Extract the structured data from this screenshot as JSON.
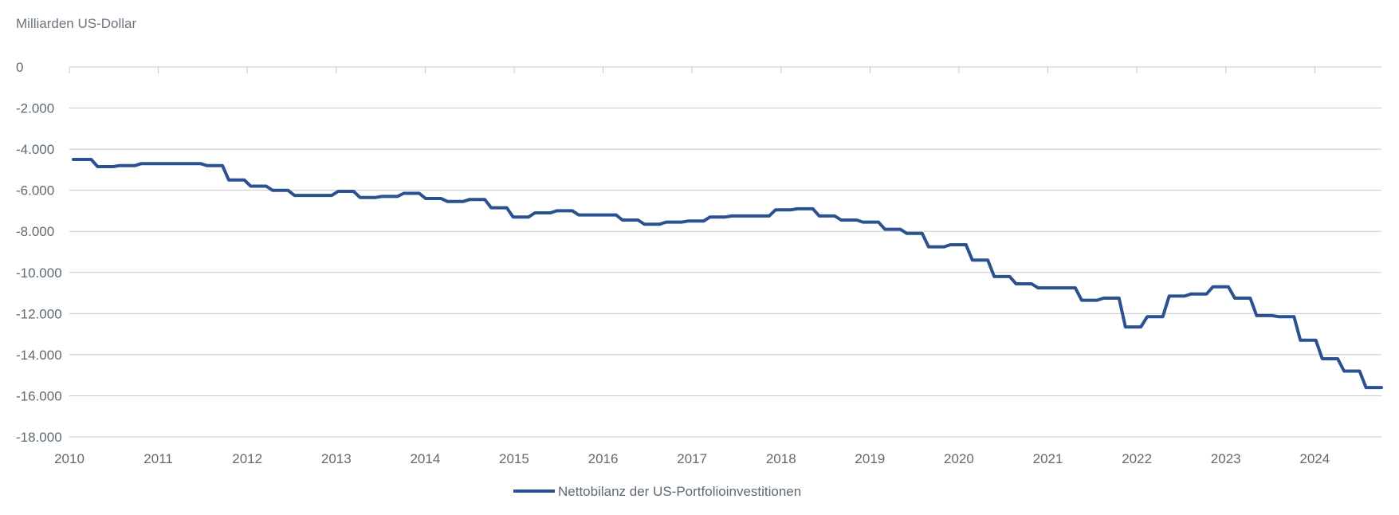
{
  "chart_data": {
    "type": "line",
    "ylabel": "Milliarden US-Dollar",
    "ylim": [
      -18000,
      0
    ],
    "yticks": [
      0,
      -2000,
      -4000,
      -6000,
      -8000,
      -10000,
      -12000,
      -14000,
      -16000,
      -18000
    ],
    "ytick_labels": [
      "0",
      "-2.000",
      "-4.000",
      "-6.000",
      "-8.000",
      "-10.000",
      "-12.000",
      "-14.000",
      "-16.000",
      "-18.000"
    ],
    "xlim": [
      2010,
      2024.75
    ],
    "xticks": [
      2010,
      2011,
      2012,
      2013,
      2014,
      2015,
      2016,
      2017,
      2018,
      2019,
      2020,
      2021,
      2022,
      2023,
      2024
    ],
    "xtick_labels": [
      "2010",
      "2011",
      "2012",
      "2013",
      "2014",
      "2015",
      "2016",
      "2017",
      "2018",
      "2019",
      "2020",
      "2021",
      "2022",
      "2023",
      "2024"
    ],
    "grid": true,
    "legend_position": "bottom-center",
    "series": [
      {
        "name": "Nettobilanz der US-Portfolioinvestitionen",
        "color": "#2b5190",
        "values": [
          -4500,
          -4850,
          -4800,
          -4700,
          -4700,
          -4700,
          -4800,
          -5500,
          -5800,
          -6000,
          -6250,
          -6250,
          -6050,
          -6350,
          -6300,
          -6150,
          -6400,
          -6550,
          -6450,
          -6850,
          -7300,
          -7100,
          -7000,
          -7200,
          -7200,
          -7450,
          -7650,
          -7550,
          -7500,
          -7300,
          -7250,
          -7250,
          -6950,
          -6900,
          -7250,
          -7450,
          -7550,
          -7900,
          -8100,
          -8750,
          -8650,
          -9400,
          -10200,
          -10550,
          -10750,
          -10750,
          -11350,
          -11250,
          -12650,
          -12150,
          -11150,
          -11050,
          -10700,
          -11250,
          -12100,
          -12150,
          -13300,
          -14200,
          -14800,
          -15600
        ]
      }
    ]
  }
}
